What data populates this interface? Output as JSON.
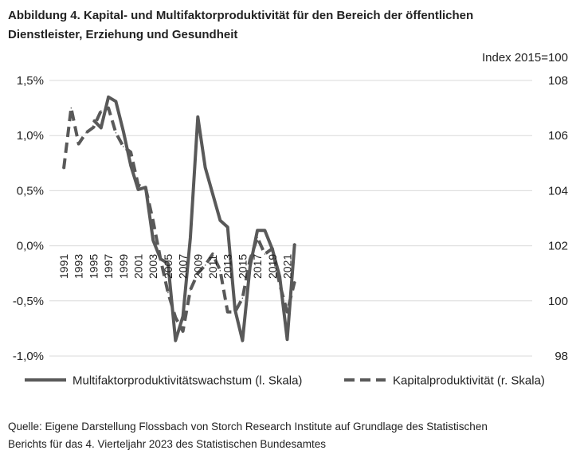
{
  "figure": {
    "title_line1": "Abbildung 4. Kapital- und Multifaktorproduktivität für den Bereich der öffentlichen",
    "title_line2": "Dienstleister, Erziehung und Gesundheit",
    "source_line1": "Quelle: Eigene Darstellung Flossbach von Storch Research Institute auf Grundlage des Statistischen",
    "source_line2": "Berichts für das 4. Vierteljahr 2023 des Statistischen Bundesamtes"
  },
  "colors": {
    "line": "#595959",
    "grid": "#d9d9d9",
    "text": "#222222"
  },
  "chart_data": {
    "type": "line",
    "x_tick_labels": [
      "1991",
      "1993",
      "1995",
      "1997",
      "1999",
      "2001",
      "2003",
      "2005",
      "2007",
      "2009",
      "2011",
      "2013",
      "2015",
      "2017",
      "2019",
      "2021"
    ],
    "y_left": {
      "ylim": [
        -1.0,
        1.5
      ],
      "ticks": [
        -1.0,
        -0.5,
        0.0,
        0.5,
        1.0,
        1.5
      ],
      "tick_labels": [
        "-1,0%",
        "-0,5%",
        "0,0%",
        "0,5%",
        "1,0%",
        "1,5%"
      ]
    },
    "y_right": {
      "label": "Index 2015=100",
      "ylim": [
        98,
        108
      ],
      "ticks": [
        98,
        100,
        102,
        104,
        106,
        108
      ],
      "tick_labels": [
        "98",
        "100",
        "102",
        "104",
        "106",
        "108"
      ]
    },
    "grid": true,
    "legend_position": "bottom",
    "series": [
      {
        "name": "Multifaktorproduktivitätswachstum (l. Skala)",
        "axis": "left",
        "style": "solid",
        "x": [
          1995,
          1996,
          1997,
          1998,
          1999,
          2000,
          2001,
          2002,
          2003,
          2004,
          2005,
          2006,
          2007,
          2008,
          2009,
          2010,
          2011,
          2012,
          2013,
          2014,
          2015,
          2016,
          2017,
          2018,
          2019,
          2020,
          2021,
          2022
        ],
        "values": [
          1.14,
          1.07,
          1.35,
          1.31,
          1.04,
          0.73,
          0.51,
          0.53,
          0.05,
          -0.12,
          -0.16,
          -0.86,
          -0.64,
          0.07,
          1.17,
          0.71,
          0.47,
          0.23,
          0.17,
          -0.58,
          -0.86,
          -0.19,
          0.14,
          0.14,
          -0.03,
          -0.28,
          -0.85,
          0.02
        ]
      },
      {
        "name": "Kapitalproduktivität (r. Skala)",
        "axis": "right",
        "style": "dashed",
        "x": [
          1991,
          1992,
          1993,
          1994,
          1995,
          1996,
          1997,
          1998,
          1999,
          2000,
          2001,
          2002,
          2003,
          2004,
          2005,
          2006,
          2007,
          2008,
          2009,
          2010,
          2011,
          2012,
          2013,
          2014,
          2015,
          2016,
          2017,
          2018,
          2019,
          2020,
          2021,
          2022
        ],
        "values": [
          104.8,
          107.0,
          105.7,
          106.1,
          106.3,
          106.9,
          107.0,
          106.1,
          105.6,
          105.4,
          104.2,
          104.1,
          102.9,
          101.5,
          100.3,
          99.4,
          98.9,
          100.4,
          101.0,
          101.3,
          101.7,
          101.1,
          99.6,
          99.6,
          100.1,
          101.5,
          102.3,
          101.7,
          101.9,
          100.6,
          99.6,
          100.7
        ]
      }
    ]
  }
}
